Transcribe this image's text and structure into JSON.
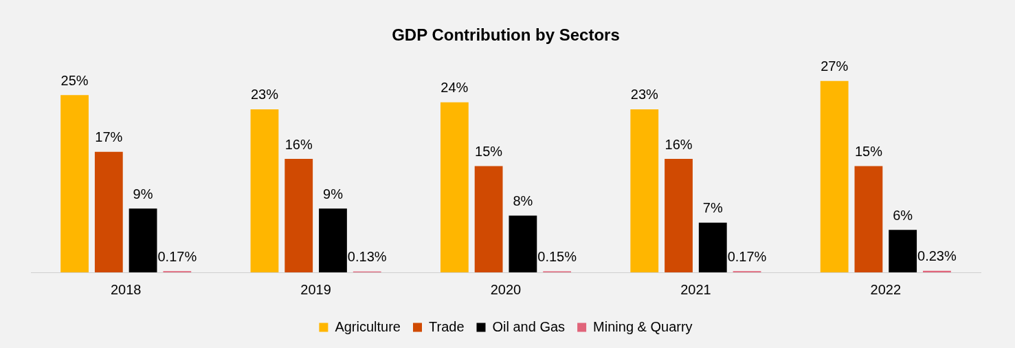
{
  "chart_data": {
    "type": "bar",
    "title": "GDP Contribution by Sectors",
    "categories": [
      "2018",
      "2019",
      "2020",
      "2021",
      "2022"
    ],
    "series": [
      {
        "name": "Agriculture",
        "color": "#ffb600",
        "values": [
          25,
          23,
          24,
          23,
          27
        ],
        "value_labels": [
          "25%",
          "23%",
          "24%",
          "23%",
          "27%"
        ]
      },
      {
        "name": "Trade",
        "color": "#d04a02",
        "values": [
          17,
          16,
          15,
          16,
          15
        ],
        "value_labels": [
          "17%",
          "16%",
          "15%",
          "16%",
          "15%"
        ]
      },
      {
        "name": "Oil and Gas",
        "color": "#000000",
        "values": [
          9,
          9,
          8,
          7,
          6
        ],
        "value_labels": [
          "9%",
          "9%",
          "8%",
          "7%",
          "6%"
        ]
      },
      {
        "name": "Mining & Quarry",
        "color": "#e0647a",
        "values": [
          0.17,
          0.13,
          0.15,
          0.17,
          0.23
        ],
        "value_labels": [
          "0.17%",
          "0.13%",
          "0.15%",
          "0.17%",
          "0.23%"
        ]
      }
    ],
    "grid": false,
    "legend": "bottom"
  }
}
